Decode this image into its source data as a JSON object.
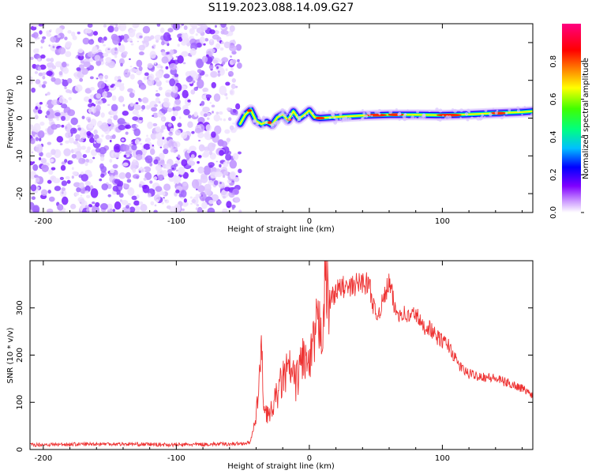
{
  "chart_data": [
    {
      "type": "heatmap",
      "title": "S119.2023.088.14.09.G27",
      "xlabel": "Height of straight line (km)",
      "ylabel": "Frequency (Hz)",
      "xlim": [
        -210,
        168
      ],
      "ylim": [
        -25,
        25
      ],
      "xticks": [
        -200,
        -100,
        0,
        100
      ],
      "yticks": [
        -20,
        -10,
        0,
        10,
        20
      ],
      "noise_region": [
        -210,
        -52
      ],
      "ridge": {
        "x": [
          -52,
          -48,
          -44,
          -40,
          -36,
          -32,
          -28,
          -24,
          -20,
          -16,
          -12,
          -8,
          -4,
          0,
          4,
          8,
          20,
          40,
          60,
          80,
          100,
          120,
          140,
          160,
          168
        ],
        "y": [
          -1.5,
          1.0,
          2.2,
          -0.8,
          -1.6,
          -1.0,
          -1.8,
          0.2,
          1.0,
          -0.6,
          1.8,
          -0.2,
          0.8,
          2.0,
          0.2,
          0.0,
          0.3,
          0.7,
          0.9,
          0.9,
          0.8,
          1.0,
          1.3,
          1.6,
          1.8
        ]
      },
      "colorbar": {
        "label": "Normalized spectral amplitude",
        "ticks": [
          0.0,
          0.2,
          0.4,
          0.6,
          0.8
        ],
        "range": [
          0,
          1
        ]
      }
    },
    {
      "type": "line",
      "title": "",
      "xlabel": "Height of straight line (km)",
      "ylabel": "SNR (10 * v/v)",
      "xlim": [
        -210,
        168
      ],
      "ylim": [
        0,
        400
      ],
      "xticks": [
        -200,
        -100,
        0,
        100
      ],
      "yticks": [
        0,
        100,
        200,
        300
      ],
      "series": [
        {
          "color": "#ee3333",
          "x": [
            -210,
            -150,
            -100,
            -55,
            -45,
            -40,
            -38,
            -36,
            -34,
            -30,
            -25,
            -20,
            -15,
            -10,
            -5,
            0,
            5,
            10,
            12,
            15,
            20,
            25,
            30,
            35,
            40,
            45,
            50,
            55,
            60,
            65,
            70,
            75,
            80,
            85,
            90,
            95,
            100,
            105,
            110,
            115,
            120,
            130,
            140,
            150,
            160,
            168
          ],
          "y": [
            10,
            12,
            10,
            12,
            14,
            60,
            150,
            200,
            90,
            70,
            110,
            150,
            170,
            140,
            200,
            170,
            250,
            270,
            360,
            315,
            335,
            345,
            340,
            350,
            355,
            350,
            280,
            310,
            355,
            290,
            290,
            280,
            290,
            260,
            260,
            240,
            230,
            220,
            190,
            170,
            160,
            155,
            150,
            140,
            130,
            115
          ]
        }
      ]
    }
  ]
}
